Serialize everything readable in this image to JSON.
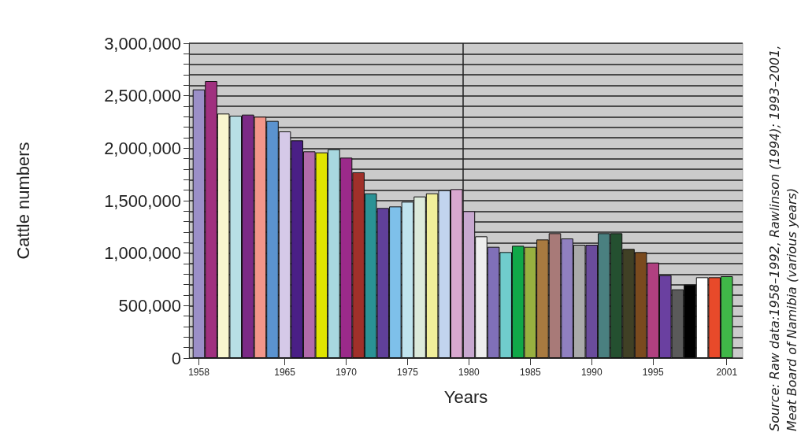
{
  "chart_data": {
    "type": "bar",
    "xlabel": "Years",
    "ylabel": "Cattle numbers",
    "x": [
      1958,
      1959,
      1960,
      1961,
      1962,
      1963,
      1964,
      1965,
      1966,
      1967,
      1968,
      1969,
      1970,
      1971,
      1972,
      1973,
      1974,
      1975,
      1976,
      1977,
      1978,
      1979,
      1980,
      1981,
      1982,
      1983,
      1984,
      1985,
      1986,
      1987,
      1988,
      1989,
      1990,
      1991,
      1992,
      1993,
      1994,
      1995,
      1996,
      1997,
      1998,
      1999,
      2000,
      2001
    ],
    "values": [
      2560000,
      2640000,
      2330000,
      2310000,
      2320000,
      2300000,
      2260000,
      2160000,
      2075000,
      1970000,
      1960000,
      1990000,
      1910000,
      1770000,
      1570000,
      1430000,
      1445000,
      1490000,
      1540000,
      1570000,
      1600000,
      1610000,
      1400000,
      1160000,
      1060000,
      1010000,
      1070000,
      1060000,
      1130000,
      1190000,
      1140000,
      1080000,
      1080000,
      1190000,
      1190000,
      1040000,
      1010000,
      910000,
      790000,
      655000,
      700000,
      770000,
      770000,
      780000
    ],
    "colors": [
      "#9b8fc8",
      "#a0307f",
      "#f8f6cf",
      "#b8dfe5",
      "#7b2a86",
      "#f2968a",
      "#5b93cf",
      "#d5c9e8",
      "#4a1f86",
      "#b26aaa",
      "#e0e400",
      "#a8d8e0",
      "#9b2a8a",
      "#a0302a",
      "#2a9295",
      "#60409a",
      "#7ec0ea",
      "#c0e4ef",
      "#dceadb",
      "#f0ee9a",
      "#c2d4ee",
      "#d8a8cf",
      "#c8a8d0",
      "#eeeeee",
      "#8070b8",
      "#70cccc",
      "#10a848",
      "#98b040",
      "#a87a40",
      "#a87a78",
      "#9080c0",
      "#aaaaaa",
      "#6a4c9c",
      "#4a8080",
      "#245030",
      "#404025",
      "#7a4a1e",
      "#b04080",
      "#6a40a0",
      "#5a5a5a",
      "#000000",
      "#ffffff",
      "#e84a2a",
      "#40b848"
    ],
    "xlim": [
      1957.2,
      2002.3
    ],
    "xticks": [
      1958,
      1965,
      1970,
      1975,
      1980,
      1985,
      1990,
      1995,
      2001
    ],
    "ylim": [
      0,
      3000000
    ],
    "yticks": [
      0,
      {
        "value": 100000,
        "label": null
      },
      {
        "value": 200000,
        "label": null
      },
      {
        "value": 300000,
        "label": null
      },
      {
        "value": 400000,
        "label": null
      },
      {
        "value": 500000,
        "label": "500,000"
      },
      {
        "value": 600000,
        "label": null
      },
      {
        "value": 700000,
        "label": null
      },
      {
        "value": 800000,
        "label": null
      },
      {
        "value": 900000,
        "label": null
      },
      {
        "value": 1000000,
        "label": "1,000,000"
      },
      {
        "value": 1100000,
        "label": null
      },
      {
        "value": 1200000,
        "label": null
      },
      {
        "value": 1300000,
        "label": null
      },
      {
        "value": 1400000,
        "label": null
      },
      {
        "value": 1500000,
        "label": "1,500,000"
      },
      {
        "value": 1600000,
        "label": null
      },
      {
        "value": 1700000,
        "label": null
      },
      {
        "value": 1800000,
        "label": null
      },
      {
        "value": 1900000,
        "label": null
      },
      {
        "value": 2000000,
        "label": "2,000,000"
      },
      {
        "value": 2100000,
        "label": null
      },
      {
        "value": 2200000,
        "label": null
      },
      {
        "value": 2300000,
        "label": null
      },
      {
        "value": 2400000,
        "label": null
      },
      {
        "value": 2500000,
        "label": "2,500,000"
      },
      {
        "value": 2600000,
        "label": null
      },
      {
        "value": 2700000,
        "label": null
      },
      {
        "value": 2800000,
        "label": null
      },
      {
        "value": 2900000,
        "label": null
      },
      {
        "value": 3000000,
        "label": "3,000,000"
      }
    ],
    "grid": "y",
    "ref_lines": [
      {
        "axis": "x",
        "value": 1979.5,
        "color": "#222222"
      }
    ],
    "annotations": [
      "Source: Raw data:1958–1992, Rawlinson (1994); 1993–2001, Meat Board of Namibia (various years)"
    ]
  }
}
